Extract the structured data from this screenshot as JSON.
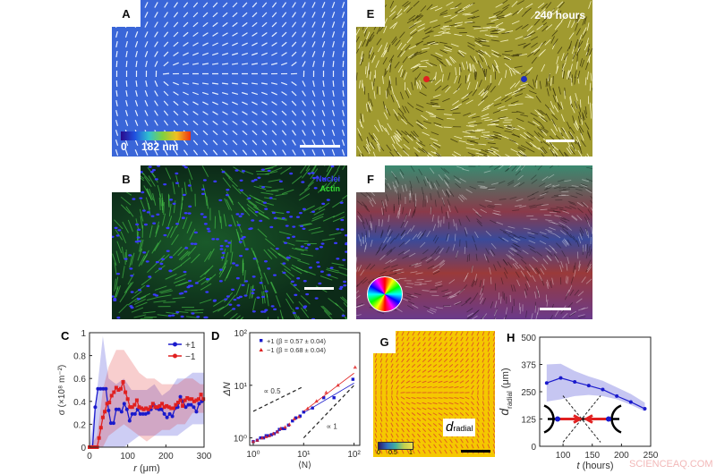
{
  "panels": {
    "A": {
      "label": "A",
      "colorbar_min": "0",
      "colorbar_max": "182 nm"
    },
    "B": {
      "label": "B",
      "legend": [
        {
          "text": "Nuclei",
          "color": "#3a3aff"
        },
        {
          "text": "Actin",
          "color": "#33dd33"
        }
      ]
    },
    "C": {
      "label": "C"
    },
    "D": {
      "label": "D"
    },
    "E": {
      "label": "E",
      "time_label": "240 hours",
      "defect_colors": [
        "#e02020",
        "#2030c0"
      ]
    },
    "F": {
      "label": "F"
    },
    "G": {
      "label": "G",
      "colorbar_ticks": [
        "0",
        "0.5",
        "1"
      ],
      "annotation_main": "d",
      "annotation_sub": "radial"
    },
    "H": {
      "label": "H"
    }
  },
  "watermark": "SCIENCEAQ.COM",
  "chart_data": [
    {
      "id": "C",
      "type": "line",
      "xlabel_italic": "r",
      "xlabel_unit": " (μm)",
      "ylabel": "σ (×10⁸ m⁻²)",
      "xlim": [
        0,
        300
      ],
      "ylim": [
        0,
        1
      ],
      "xticks": [
        "0",
        "100",
        "200",
        "300"
      ],
      "yticks": [
        "0",
        "0.2",
        "0.4",
        "0.6",
        "0.8",
        "1"
      ],
      "legend_position": "top-right",
      "series": [
        {
          "name": "+1",
          "color": "#1a1acc",
          "x": [
            0,
            8,
            15,
            22,
            29,
            36,
            43,
            50,
            56,
            63,
            70,
            77,
            84,
            91,
            98,
            105,
            112,
            119,
            126,
            133,
            140,
            147,
            154,
            161,
            168,
            175,
            182,
            189,
            196,
            203,
            210,
            217,
            224,
            231,
            238,
            245,
            252,
            259,
            266,
            273,
            280,
            287,
            294
          ],
          "y": [
            0,
            0,
            0.35,
            0.51,
            0.51,
            0.51,
            0.51,
            0.32,
            0.21,
            0.21,
            0.33,
            0.33,
            0.31,
            0.38,
            0.33,
            0.23,
            0.29,
            0.29,
            0.33,
            0.29,
            0.29,
            0.29,
            0.3,
            0.33,
            0.37,
            0.34,
            0.33,
            0.33,
            0.29,
            0.26,
            0.29,
            0.27,
            0.34,
            0.35,
            0.44,
            0.4,
            0.35,
            0.37,
            0.37,
            0.35,
            0.31,
            0.38,
            0.4
          ],
          "band_x": [
            0,
            20,
            35,
            50,
            70,
            90,
            110,
            130,
            150,
            170,
            190,
            210,
            230,
            250,
            270,
            290,
            300
          ],
          "band_upper": [
            0,
            0.5,
            0.97,
            0.6,
            0.55,
            0.6,
            0.5,
            0.5,
            0.5,
            0.55,
            0.45,
            0.5,
            0.6,
            0.6,
            0.65,
            0.65,
            0.65
          ],
          "band_lower": [
            0,
            0,
            0,
            0,
            0,
            0,
            0.05,
            0.1,
            0.1,
            0.1,
            0.1,
            0.1,
            0.1,
            0.15,
            0.2,
            0.2,
            0.2
          ]
        },
        {
          "name": "−1",
          "color": "#e02020",
          "x": [
            0,
            8,
            15,
            20,
            25,
            30,
            35,
            40,
            46,
            52,
            58,
            64,
            70,
            76,
            82,
            88,
            94,
            100,
            106,
            112,
            118,
            124,
            130,
            136,
            142,
            148,
            154,
            160,
            166,
            172,
            178,
            184,
            190,
            196,
            202,
            208,
            214,
            220,
            226,
            232,
            238,
            244,
            250,
            256,
            262,
            268,
            274,
            280,
            286,
            292,
            298
          ],
          "y": [
            0,
            0,
            0,
            0,
            0.08,
            0.17,
            0.26,
            0.31,
            0.38,
            0.39,
            0.45,
            0.48,
            0.52,
            0.5,
            0.51,
            0.57,
            0.48,
            0.42,
            0.35,
            0.35,
            0.37,
            0.41,
            0.35,
            0.34,
            0.33,
            0.34,
            0.33,
            0.35,
            0.38,
            0.35,
            0.35,
            0.36,
            0.38,
            0.35,
            0.36,
            0.35,
            0.34,
            0.34,
            0.37,
            0.39,
            0.41,
            0.36,
            0.41,
            0.43,
            0.42,
            0.42,
            0.4,
            0.41,
            0.42,
            0.46,
            0.42
          ],
          "band_x": [
            0,
            20,
            35,
            50,
            70,
            90,
            110,
            130,
            150,
            170,
            190,
            210,
            230,
            250,
            270,
            290,
            300
          ],
          "band_upper": [
            0,
            0.1,
            0.5,
            0.7,
            0.85,
            0.85,
            0.75,
            0.65,
            0.6,
            0.6,
            0.55,
            0.55,
            0.55,
            0.6,
            0.6,
            0.55,
            0.55
          ],
          "band_lower": [
            0,
            0,
            0,
            0.1,
            0.15,
            0.2,
            0.15,
            0.1,
            0.05,
            0.1,
            0.15,
            0.15,
            0.2,
            0.2,
            0.3,
            0.3,
            0.3
          ]
        }
      ]
    },
    {
      "id": "D",
      "type": "scatter",
      "xscale": "log",
      "yscale": "log",
      "xlabel": "⟨N⟩",
      "ylabel": "ΔN",
      "xlim": [
        0.85,
        130
      ],
      "ylim": [
        0.72,
        100
      ],
      "xticks": [
        {
          "value": 1,
          "label": "10⁰"
        },
        {
          "value": 10,
          "label": "10¹"
        },
        {
          "value": 100,
          "label": "10²"
        }
      ],
      "yticks": [
        {
          "value": 1,
          "label": "10⁰"
        },
        {
          "value": 10,
          "label": "10¹"
        },
        {
          "value": 100,
          "label": "10²"
        }
      ],
      "legend_position": "top-left",
      "series": [
        {
          "name": "+1 (β = 0.57 ± 0.04)",
          "color": "#1a1acc",
          "marker": "square",
          "x": [
            1,
            1.2,
            1.4,
            1.6,
            1.8,
            2,
            2.3,
            2.6,
            3,
            3.3,
            3.7,
            4.2,
            5,
            6,
            7,
            8.5,
            10,
            15,
            25,
            40,
            95
          ],
          "y": [
            0.85,
            0.9,
            1.0,
            1.0,
            1.1,
            1.1,
            1.15,
            1.2,
            1.3,
            1.45,
            1.5,
            1.5,
            1.75,
            2.1,
            2.4,
            2.6,
            3.1,
            3.7,
            5.8,
            5.8,
            13
          ],
          "fit": {
            "x": [
              10,
              100
            ],
            "y": [
              3.0,
              11
            ]
          }
        },
        {
          "name": "−1 (β = 0.68 ± 0.04)",
          "color": "#e02020",
          "marker": "triangle",
          "x": [
            1,
            1.2,
            1.5,
            1.8,
            2.1,
            2.5,
            3,
            3.5,
            4.3,
            5.2,
            6.5,
            8,
            12,
            18,
            28,
            48,
            105
          ],
          "y": [
            0.85,
            0.9,
            1.0,
            1.05,
            1.1,
            1.2,
            1.3,
            1.5,
            1.6,
            1.8,
            2.3,
            2.5,
            3.6,
            5,
            7.3,
            10,
            22
          ],
          "fit": {
            "x": [
              10,
              100
            ],
            "y": [
              3.2,
              17
            ]
          }
        }
      ],
      "guides": [
        {
          "label": "∝ 0.5",
          "x": [
            1,
            10
          ],
          "y": [
            3.2,
            9.5
          ]
        },
        {
          "label": "∝ 1",
          "x": [
            10,
            100
          ],
          "y": [
            1,
            10
          ]
        }
      ]
    },
    {
      "id": "H",
      "type": "line",
      "xlabel_italic": "t",
      "xlabel_unit": " (hours)",
      "ylabel_main": "d",
      "ylabel_sub": "radial",
      "ylabel_unit": " (μm)",
      "xlim": [
        60,
        250
      ],
      "ylim": [
        0,
        500
      ],
      "xticks": [
        "100",
        "150",
        "200",
        "250"
      ],
      "yticks": [
        "0",
        "125",
        "250",
        "375",
        "500"
      ],
      "series": [
        {
          "color": "#1a1acc",
          "x": [
            72,
            96,
            120,
            144,
            168,
            192,
            216,
            240
          ],
          "y": [
            290,
            313,
            295,
            278,
            260,
            230,
            203,
            172
          ],
          "band_upper": [
            375,
            378,
            345,
            320,
            300,
            270,
            240,
            200
          ],
          "band_lower": [
            205,
            215,
            230,
            235,
            230,
            215,
            190,
            160
          ]
        }
      ]
    }
  ]
}
